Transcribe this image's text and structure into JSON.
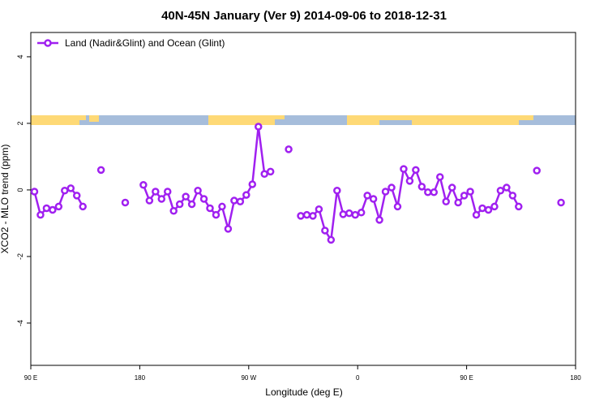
{
  "chart_data": {
    "type": "line",
    "title": "40N-45N January (Ver 9)   2014-09-06 to 2018-12-31",
    "x_label": "Longitude (deg E)",
    "y_label": "XCO2 - MLO trend (ppm)",
    "x": [
      93,
      98,
      103,
      108,
      113,
      118,
      123,
      128,
      133,
      138,
      143,
      148,
      153,
      158,
      163,
      168,
      173,
      178,
      183,
      188,
      193,
      198,
      203,
      208,
      213,
      218,
      223,
      228,
      233,
      238,
      243,
      248,
      253,
      258,
      263,
      268,
      273,
      278,
      283,
      288,
      293,
      298,
      303,
      308,
      313,
      318,
      323,
      328,
      333,
      338,
      343,
      348,
      353,
      358,
      363,
      368,
      373,
      378,
      383,
      388,
      393,
      398,
      403,
      408,
      413,
      418,
      423,
      428,
      433,
      438,
      443,
      448,
      453,
      458,
      463,
      468,
      473,
      478,
      483,
      488,
      493,
      498,
      503,
      508,
      513,
      518,
      523,
      528
    ],
    "series": [
      {
        "name": "Land (Nadir&Glint) and Ocean (Glint)",
        "color": "#a020f0",
        "values": [
          -0.05,
          -0.75,
          -0.55,
          -0.6,
          -0.5,
          -0.02,
          0.05,
          -0.17,
          -0.5,
          null,
          null,
          0.6,
          null,
          null,
          null,
          -0.38,
          null,
          null,
          0.15,
          -0.32,
          -0.05,
          -0.27,
          -0.05,
          -0.63,
          -0.43,
          -0.2,
          -0.43,
          -0.02,
          -0.27,
          -0.55,
          -0.75,
          -0.5,
          -1.17,
          -0.32,
          -0.35,
          -0.15,
          0.17,
          1.9,
          0.48,
          0.55,
          null,
          null,
          1.22,
          null,
          -0.78,
          -0.75,
          -0.78,
          -0.58,
          -1.22,
          -1.5,
          -0.02,
          -0.73,
          -0.7,
          -0.75,
          -0.68,
          -0.17,
          -0.27,
          -0.9,
          -0.05,
          0.07,
          -0.5,
          0.63,
          0.27,
          0.6,
          0.1,
          -0.07,
          -0.07,
          0.39,
          -0.35,
          0.07,
          -0.38,
          -0.17,
          -0.05,
          -0.75,
          -0.55,
          -0.6,
          -0.5,
          -0.02,
          0.07,
          -0.17,
          -0.5,
          null,
          null,
          0.58,
          null,
          null,
          null,
          -0.38
        ]
      }
    ],
    "xlim": [
      90,
      540
    ],
    "xticks": [
      {
        "value": 90,
        "label": "90 E"
      },
      {
        "value": 180,
        "label": "180"
      },
      {
        "value": 270,
        "label": "90 W"
      },
      {
        "value": 360,
        "label": "0"
      },
      {
        "value": 450,
        "label": "90 E"
      },
      {
        "value": 540,
        "label": "180"
      }
    ],
    "ylim": [
      -5.27,
      4.73
    ],
    "yticks": [
      -4,
      -2,
      0,
      2,
      4
    ],
    "legend": "top-left"
  }
}
